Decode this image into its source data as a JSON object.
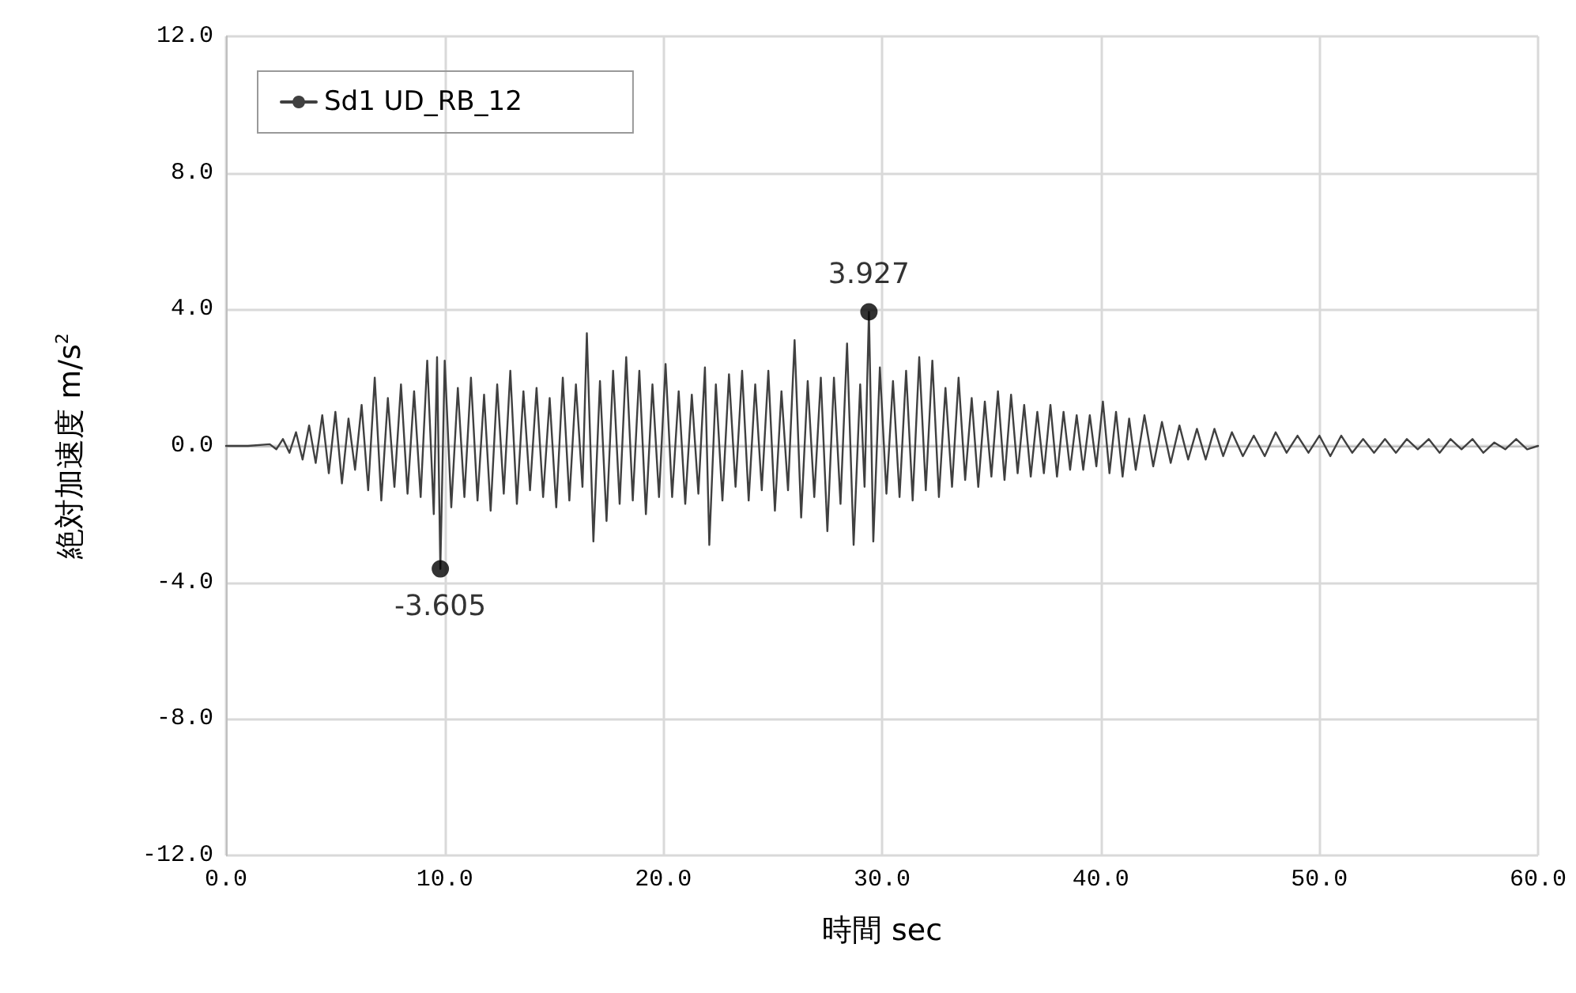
{
  "chart_data": {
    "type": "line",
    "xlabel": "時間 sec",
    "ylabel": "絶対加速度 m/s$^{2}$",
    "xlim": [
      0,
      60
    ],
    "xticks": [
      {
        "value": 0,
        "label": "0.0"
      },
      {
        "value": 10,
        "label": "10.0"
      },
      {
        "value": 20,
        "label": "20.0"
      },
      {
        "value": 30,
        "label": "30.0"
      },
      {
        "value": 40,
        "label": "40.0"
      },
      {
        "value": 50,
        "label": "50.0"
      },
      {
        "value": 60,
        "label": "60.0"
      }
    ],
    "ylim": [
      -12,
      12
    ],
    "yticks": [
      {
        "value": -12,
        "label": "-12.0"
      },
      {
        "value": -8,
        "label": "-8.0"
      },
      {
        "value": -4,
        "label": "-4.0"
      },
      {
        "value": 0,
        "label": "0.0"
      },
      {
        "value": 4,
        "label": "4.0"
      },
      {
        "value": 8,
        "label": "8.0"
      },
      {
        "value": 12,
        "label": "12.0"
      }
    ],
    "grid": true,
    "legend": "top left",
    "marker": "none",
    "line_style": "solid",
    "series": [
      {
        "name": "Sd1 UD_RB_12",
        "color": "#404040",
        "x": [
          0,
          1,
          2,
          2.3,
          2.6,
          2.9,
          3.2,
          3.5,
          3.8,
          4.1,
          4.4,
          4.7,
          5,
          5.3,
          5.6,
          5.9,
          6.2,
          6.5,
          6.8,
          7.1,
          7.4,
          7.7,
          8,
          8.3,
          8.6,
          8.9,
          9.2,
          9.5,
          9.65,
          9.8,
          10,
          10.3,
          10.6,
          10.9,
          11.2,
          11.5,
          11.8,
          12.1,
          12.4,
          12.7,
          13,
          13.3,
          13.6,
          13.9,
          14.2,
          14.5,
          14.8,
          15.1,
          15.4,
          15.7,
          16,
          16.3,
          16.5,
          16.8,
          17.1,
          17.4,
          17.7,
          18,
          18.3,
          18.6,
          18.9,
          19.2,
          19.5,
          19.8,
          20.1,
          20.4,
          20.7,
          21,
          21.3,
          21.6,
          21.9,
          22.1,
          22.4,
          22.7,
          23,
          23.3,
          23.6,
          23.9,
          24.2,
          24.5,
          24.8,
          25.1,
          25.4,
          25.7,
          26,
          26.3,
          26.6,
          26.9,
          27.2,
          27.5,
          27.8,
          28.1,
          28.4,
          28.7,
          29,
          29.2,
          29.4,
          29.6,
          29.9,
          30.2,
          30.5,
          30.8,
          31.1,
          31.4,
          31.7,
          32,
          32.3,
          32.6,
          32.9,
          33.2,
          33.5,
          33.8,
          34.1,
          34.4,
          34.7,
          35,
          35.3,
          35.6,
          35.9,
          36.2,
          36.5,
          36.8,
          37.1,
          37.4,
          37.7,
          38,
          38.3,
          38.6,
          38.9,
          39.2,
          39.5,
          39.8,
          40.1,
          40.4,
          40.7,
          41,
          41.3,
          41.6,
          42,
          42.4,
          42.8,
          43.2,
          43.6,
          44,
          44.4,
          44.8,
          45.2,
          45.6,
          46,
          46.5,
          47,
          47.5,
          48,
          48.5,
          49,
          49.5,
          50,
          50.5,
          51,
          51.5,
          52,
          52.5,
          53,
          53.5,
          54,
          54.5,
          55,
          55.5,
          56,
          56.5,
          57,
          57.5,
          58,
          58.5,
          59,
          59.5,
          60
        ],
        "values": [
          0,
          0,
          0.05,
          -0.1,
          0.2,
          -0.2,
          0.4,
          -0.4,
          0.6,
          -0.5,
          0.9,
          -0.8,
          1,
          -1.1,
          0.8,
          -0.7,
          1.2,
          -1.3,
          2,
          -1.6,
          1.4,
          -1.2,
          1.8,
          -1.4,
          1.6,
          -1.5,
          2.5,
          -2,
          2.6,
          -3.605,
          2.5,
          -1.8,
          1.7,
          -1.5,
          2,
          -1.6,
          1.5,
          -1.9,
          1.8,
          -1.4,
          2.2,
          -1.7,
          1.6,
          -1.3,
          1.7,
          -1.5,
          1.4,
          -1.8,
          2,
          -1.6,
          1.8,
          -1.2,
          3.3,
          -2.8,
          1.9,
          -2.2,
          2.2,
          -1.7,
          2.6,
          -1.6,
          2.2,
          -2,
          1.8,
          -1.5,
          2.4,
          -1.5,
          1.6,
          -1.7,
          1.5,
          -1.4,
          2.3,
          -2.9,
          1.8,
          -1.6,
          2.1,
          -1.2,
          2.2,
          -1.6,
          1.8,
          -1.3,
          2.2,
          -1.9,
          1.6,
          -1.3,
          3.1,
          -2.1,
          1.9,
          -1.5,
          2,
          -2.5,
          2,
          -1.7,
          3,
          -2.9,
          1.8,
          -1.2,
          3.927,
          -2.8,
          2.3,
          -1.4,
          1.9,
          -1.5,
          2.2,
          -1.6,
          2.6,
          -1.3,
          2.5,
          -1.5,
          1.7,
          -1.2,
          2,
          -1,
          1.4,
          -1.2,
          1.3,
          -0.9,
          1.6,
          -1,
          1.5,
          -0.8,
          1.2,
          -0.9,
          1,
          -0.8,
          1.2,
          -0.9,
          1,
          -0.7,
          0.9,
          -0.7,
          0.9,
          -0.6,
          1.3,
          -0.8,
          1,
          -0.9,
          0.8,
          -0.7,
          0.9,
          -0.6,
          0.7,
          -0.5,
          0.6,
          -0.4,
          0.5,
          -0.4,
          0.5,
          -0.3,
          0.4,
          -0.3,
          0.3,
          -0.3,
          0.4,
          -0.2,
          0.3,
          -0.2,
          0.3,
          -0.3,
          0.3,
          -0.2,
          0.2,
          -0.2,
          0.2,
          -0.2,
          0.2,
          -0.1,
          0.2,
          -0.2,
          0.2,
          -0.1,
          0.2,
          -0.2,
          0.1,
          -0.1,
          0.2,
          -0.1,
          0
        ]
      },
      {
        "type": "scatter",
        "color": "#000000",
        "marker": "circle",
        "x": [
          9.8,
          29.4
        ],
        "values": [
          -3.605,
          3.927
        ],
        "value_labels": [
          "-3.605",
          "3.927"
        ]
      }
    ]
  }
}
